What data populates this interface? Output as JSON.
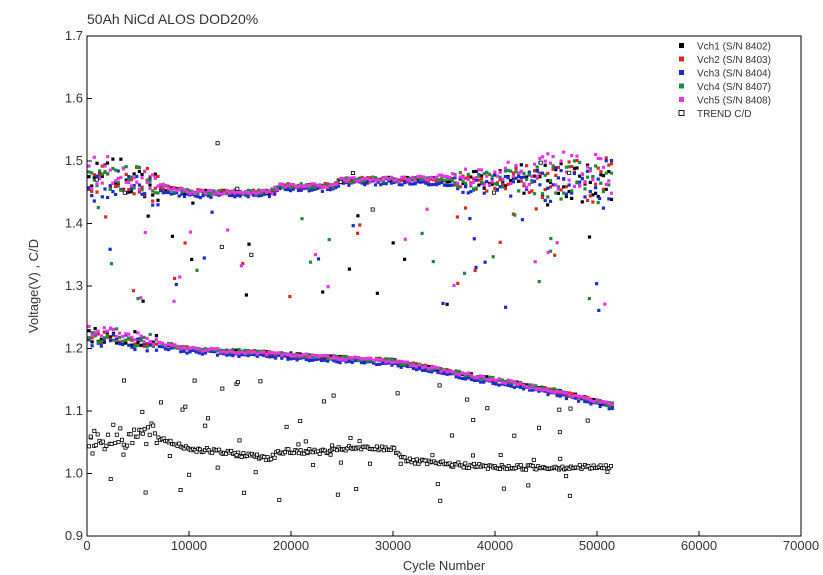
{
  "chart_data": {
    "type": "scatter",
    "title": "50Ah NiCd ALOS DOD20%",
    "xlabel": "Cycle Number",
    "ylabel": "Voltage(V) , C/D",
    "xlim": [
      0,
      70000
    ],
    "ylim": [
      0.9,
      1.7
    ],
    "x_ticks": [
      "0",
      "10000",
      "20000",
      "30000",
      "40000",
      "50000",
      "60000",
      "70000"
    ],
    "y_ticks": [
      "0.9",
      "1.0",
      "1.1",
      "1.2",
      "1.3",
      "1.4",
      "1.5",
      "1.6",
      "1.7"
    ],
    "grid": false,
    "legend_position": "top-right",
    "series": [
      {
        "name": "Vch1 (S/N 8402)",
        "color": "#000000",
        "marker": "filled-square",
        "eoc": [
          [
            500,
            1.47
          ],
          [
            3000,
            1.48
          ],
          [
            6500,
            1.46
          ],
          [
            10000,
            1.45
          ],
          [
            18000,
            1.45
          ],
          [
            19000,
            1.46
          ],
          [
            24000,
            1.46
          ],
          [
            25000,
            1.47
          ],
          [
            30000,
            1.47
          ],
          [
            35000,
            1.47
          ],
          [
            40000,
            1.47
          ],
          [
            45000,
            1.47
          ],
          [
            50000,
            1.47
          ],
          [
            51500,
            1.47
          ]
        ],
        "eod": [
          [
            500,
            1.22
          ],
          [
            3000,
            1.22
          ],
          [
            6500,
            1.21
          ],
          [
            10000,
            1.2
          ],
          [
            20000,
            1.19
          ],
          [
            30000,
            1.18
          ],
          [
            35000,
            1.165
          ],
          [
            40000,
            1.15
          ],
          [
            45000,
            1.135
          ],
          [
            51500,
            1.11
          ]
        ]
      },
      {
        "name": "Vch2 (S/N 8403)",
        "color": "#d62a1f",
        "marker": "filled-square",
        "eoc": [
          [
            500,
            1.47
          ],
          [
            3000,
            1.48
          ],
          [
            6500,
            1.46
          ],
          [
            10000,
            1.45
          ],
          [
            18000,
            1.45
          ],
          [
            19000,
            1.46
          ],
          [
            24000,
            1.46
          ],
          [
            25000,
            1.47
          ],
          [
            30000,
            1.47
          ],
          [
            35000,
            1.47
          ],
          [
            40000,
            1.47
          ],
          [
            45000,
            1.47
          ],
          [
            50000,
            1.47
          ],
          [
            51500,
            1.47
          ]
        ],
        "eod": [
          [
            500,
            1.22
          ],
          [
            3000,
            1.22
          ],
          [
            6500,
            1.21
          ],
          [
            10000,
            1.2
          ],
          [
            20000,
            1.19
          ],
          [
            30000,
            1.18
          ],
          [
            35000,
            1.165
          ],
          [
            40000,
            1.15
          ],
          [
            45000,
            1.135
          ],
          [
            51500,
            1.11
          ]
        ]
      },
      {
        "name": "Vch3 (S/N 8404)",
        "color": "#1a2ccc",
        "marker": "filled-square",
        "eoc": [
          [
            500,
            1.46
          ],
          [
            3000,
            1.47
          ],
          [
            6500,
            1.45
          ],
          [
            10000,
            1.445
          ],
          [
            18000,
            1.445
          ],
          [
            19000,
            1.455
          ],
          [
            24000,
            1.455
          ],
          [
            25000,
            1.465
          ],
          [
            30000,
            1.465
          ],
          [
            35000,
            1.465
          ],
          [
            40000,
            1.46
          ],
          [
            45000,
            1.46
          ],
          [
            50000,
            1.46
          ],
          [
            51500,
            1.46
          ]
        ],
        "eod": [
          [
            500,
            1.215
          ],
          [
            3000,
            1.215
          ],
          [
            6500,
            1.205
          ],
          [
            10000,
            1.195
          ],
          [
            20000,
            1.185
          ],
          [
            30000,
            1.175
          ],
          [
            35000,
            1.16
          ],
          [
            40000,
            1.145
          ],
          [
            45000,
            1.13
          ],
          [
            51500,
            1.105
          ]
        ]
      },
      {
        "name": "Vch4 (S/N 8407)",
        "color": "#1f8a3a",
        "marker": "filled-square",
        "eoc": [
          [
            500,
            1.47
          ],
          [
            3000,
            1.48
          ],
          [
            6500,
            1.46
          ],
          [
            10000,
            1.45
          ],
          [
            18000,
            1.45
          ],
          [
            19000,
            1.46
          ],
          [
            24000,
            1.46
          ],
          [
            25000,
            1.47
          ],
          [
            30000,
            1.47
          ],
          [
            35000,
            1.47
          ],
          [
            40000,
            1.47
          ],
          [
            45000,
            1.47
          ],
          [
            50000,
            1.47
          ],
          [
            51500,
            1.47
          ]
        ],
        "eod": [
          [
            500,
            1.22
          ],
          [
            3000,
            1.22
          ],
          [
            6500,
            1.21
          ],
          [
            10000,
            1.2
          ],
          [
            20000,
            1.19
          ],
          [
            30000,
            1.18
          ],
          [
            35000,
            1.165
          ],
          [
            40000,
            1.15
          ],
          [
            45000,
            1.135
          ],
          [
            51500,
            1.11
          ]
        ]
      },
      {
        "name": "Vch5 (S/N 8408)",
        "color": "#e635e6",
        "marker": "filled-square",
        "eoc": [
          [
            500,
            1.48
          ],
          [
            3000,
            1.49
          ],
          [
            6500,
            1.465
          ],
          [
            10000,
            1.45
          ],
          [
            18000,
            1.45
          ],
          [
            19000,
            1.46
          ],
          [
            24000,
            1.46
          ],
          [
            25000,
            1.47
          ],
          [
            30000,
            1.47
          ],
          [
            35000,
            1.475
          ],
          [
            40000,
            1.48
          ],
          [
            45000,
            1.485
          ],
          [
            50000,
            1.485
          ],
          [
            51500,
            1.48
          ]
        ],
        "eod": [
          [
            500,
            1.225
          ],
          [
            3000,
            1.22
          ],
          [
            6500,
            1.21
          ],
          [
            10000,
            1.2
          ],
          [
            20000,
            1.19
          ],
          [
            30000,
            1.18
          ],
          [
            35000,
            1.165
          ],
          [
            40000,
            1.15
          ],
          [
            45000,
            1.135
          ],
          [
            51500,
            1.11
          ]
        ]
      },
      {
        "name": "TREND C/D",
        "color": "#000000",
        "marker": "open-square",
        "cd": [
          [
            500,
            1.05
          ],
          [
            3000,
            1.06
          ],
          [
            6500,
            1.06
          ],
          [
            10000,
            1.04
          ],
          [
            18000,
            1.025
          ],
          [
            19000,
            1.035
          ],
          [
            24000,
            1.035
          ],
          [
            25000,
            1.04
          ],
          [
            30000,
            1.04
          ],
          [
            31500,
            1.02
          ],
          [
            35000,
            1.015
          ],
          [
            40000,
            1.01
          ],
          [
            45000,
            1.01
          ],
          [
            51500,
            1.01
          ]
        ]
      }
    ]
  }
}
